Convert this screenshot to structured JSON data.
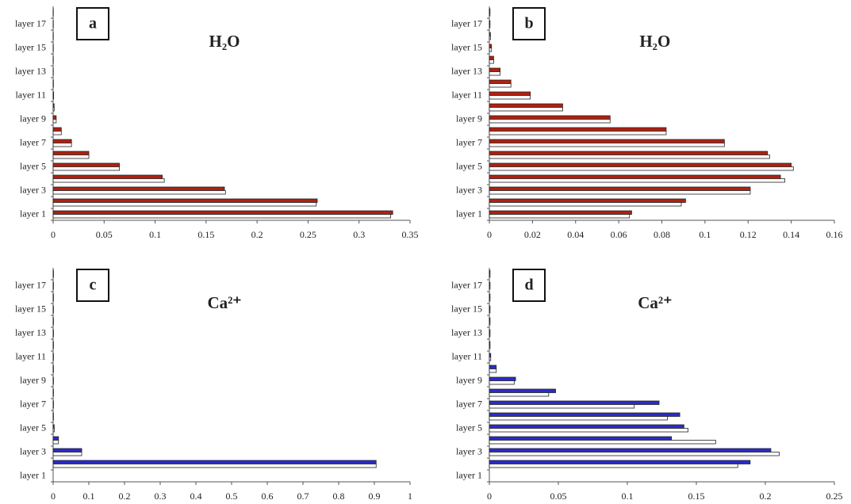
{
  "chart_data": [
    {
      "type": "bar",
      "orientation": "horizontal",
      "panel_label": "a",
      "title": "H₂O",
      "categories": [
        "layer 1",
        null,
        "layer 3",
        null,
        "layer 5",
        null,
        "layer 7",
        null,
        "layer 9",
        null,
        "layer 11",
        null,
        "layer 13",
        null,
        "layer 15",
        null,
        "layer 17",
        null
      ],
      "series": [
        {
          "color": "#b22010",
          "values": [
            0.333,
            0.259,
            0.168,
            0.107,
            0.065,
            0.035,
            0.018,
            0.008,
            0.003,
            0.001,
            0.0005,
            0.0003,
            0.0002,
            0.0002,
            0.0002,
            0.0002,
            0.0002,
            0.0002
          ]
        },
        {
          "color": "#ffffff",
          "values": [
            0.331,
            0.258,
            0.169,
            0.109,
            0.065,
            0.035,
            0.018,
            0.008,
            0.003,
            0.001,
            0.0005,
            0.0003,
            0.0002,
            0.0002,
            0.0002,
            0.0002,
            0.0002,
            0.0002
          ]
        }
      ],
      "xlim": [
        0,
        0.35
      ],
      "xticks": [
        0,
        0.05,
        0.1,
        0.15,
        0.2,
        0.25,
        0.3,
        0.35
      ]
    },
    {
      "type": "bar",
      "orientation": "horizontal",
      "panel_label": "b",
      "title": "H₂O",
      "categories": [
        "layer 1",
        null,
        "layer 3",
        null,
        "layer 5",
        null,
        "layer 7",
        null,
        "layer 9",
        null,
        "layer 11",
        null,
        "layer 13",
        null,
        "layer 15",
        null,
        "layer 17",
        null
      ],
      "series": [
        {
          "color": "#b22010",
          "values": [
            0.066,
            0.091,
            0.121,
            0.135,
            0.14,
            0.129,
            0.109,
            0.082,
            0.056,
            0.034,
            0.019,
            0.01,
            0.005,
            0.002,
            0.001,
            0.0005,
            0.0003,
            0.0003
          ]
        },
        {
          "color": "#ffffff",
          "values": [
            0.065,
            0.089,
            0.121,
            0.137,
            0.141,
            0.13,
            0.109,
            0.082,
            0.056,
            0.034,
            0.019,
            0.01,
            0.005,
            0.002,
            0.001,
            0.0005,
            0.0003,
            0.0003
          ]
        }
      ],
      "xlim": [
        0,
        0.16
      ],
      "xticks": [
        0,
        0.02,
        0.04,
        0.06,
        0.08,
        0.1,
        0.12,
        0.14,
        0.16
      ]
    },
    {
      "type": "bar",
      "orientation": "horizontal",
      "panel_label": "c",
      "title": "Ca²⁺",
      "categories": [
        "layer 1",
        null,
        "layer 3",
        null,
        "layer 5",
        null,
        "layer 7",
        null,
        "layer 9",
        null,
        "layer 11",
        null,
        "layer 13",
        null,
        "layer 15",
        null,
        "layer 17",
        null
      ],
      "series": [
        {
          "color": "#2b2bcc",
          "values": [
            0,
            0.905,
            0.08,
            0.015,
            0.003,
            0.001,
            0.001,
            0.001,
            0.001,
            0.001,
            0.001,
            0.001,
            0.001,
            0.001,
            0.001,
            0.001,
            0.001,
            0.001
          ]
        },
        {
          "color": "#ffffff",
          "values": [
            0,
            0.905,
            0.08,
            0.015,
            0.003,
            0.001,
            0.001,
            0.001,
            0.001,
            0.001,
            0.001,
            0.001,
            0.001,
            0.001,
            0.001,
            0.001,
            0.001,
            0.001
          ]
        }
      ],
      "xlim": [
        0,
        1
      ],
      "xticks": [
        0,
        0.1,
        0.2,
        0.3,
        0.4,
        0.5,
        0.6,
        0.7,
        0.8,
        0.9,
        1
      ]
    },
    {
      "type": "bar",
      "orientation": "horizontal",
      "panel_label": "d",
      "title": "Ca²⁺",
      "categories": [
        "layer 1",
        null,
        "layer 3",
        null,
        "layer 5",
        null,
        "layer 7",
        null,
        "layer 9",
        null,
        "layer 11",
        null,
        "layer 13",
        null,
        "layer 15",
        null,
        "layer 17",
        null
      ],
      "series": [
        {
          "color": "#2b2bcc",
          "values": [
            0,
            0.189,
            0.204,
            0.132,
            0.141,
            0.138,
            0.123,
            0.048,
            0.019,
            0.005,
            0.001,
            0.0005,
            0.0005,
            0.0005,
            0.0005,
            0.0005,
            0.0005,
            0.0005
          ]
        },
        {
          "color": "#ffffff",
          "values": [
            0,
            0.18,
            0.21,
            0.164,
            0.144,
            0.129,
            0.105,
            0.043,
            0.018,
            0.005,
            0.001,
            0.0005,
            0.0005,
            0.0005,
            0.0005,
            0.0005,
            0.0005,
            0.0005
          ]
        }
      ],
      "xlim": [
        0,
        0.25
      ],
      "xticks": [
        0,
        0.05,
        0.1,
        0.15,
        0.2,
        0.25
      ]
    }
  ]
}
